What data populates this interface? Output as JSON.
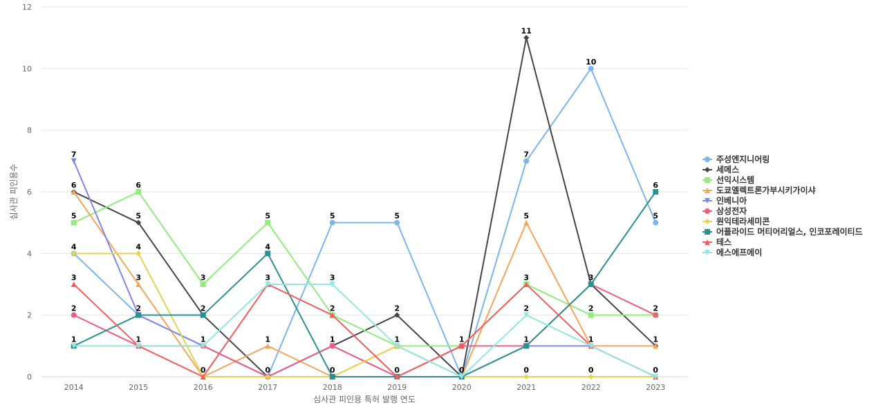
{
  "chart_data": {
    "type": "line",
    "title": "",
    "xlabel": "심사관 피인용 특허 발행 연도",
    "ylabel": "심사관 피인용수",
    "ylim": [
      0,
      12
    ],
    "yticks": [
      0,
      2,
      4,
      6,
      8,
      10,
      12
    ],
    "grid": true,
    "legend_position": "right",
    "categories": [
      "2014",
      "2015",
      "2016",
      "2017",
      "2018",
      "2019",
      "2020",
      "2021",
      "2022",
      "2023"
    ],
    "series": [
      {
        "name": "주성엔지니어링",
        "color": "#7cb5ec",
        "marker": "circle",
        "values": [
          4,
          2,
          1,
          0,
          5,
          5,
          0,
          7,
          10,
          5
        ]
      },
      {
        "name": "세메스",
        "color": "#434348",
        "marker": "diamond",
        "values": [
          6,
          5,
          2,
          0,
          1,
          2,
          0,
          11,
          3,
          1
        ]
      },
      {
        "name": "선익시스템",
        "color": "#90ed7d",
        "marker": "square",
        "values": [
          5,
          6,
          3,
          5,
          2,
          1,
          1,
          3,
          2,
          2
        ]
      },
      {
        "name": "도쿄엘렉트론가부시키가이샤",
        "color": "#f7a35c",
        "marker": "triangle",
        "values": [
          6,
          3,
          0,
          1,
          0,
          1,
          0,
          5,
          1,
          1
        ]
      },
      {
        "name": "인베니아",
        "color": "#8085e9",
        "marker": "triangle-down",
        "values": [
          7,
          2,
          1,
          0,
          1,
          0,
          0,
          1,
          1,
          0
        ]
      },
      {
        "name": "삼성전자",
        "color": "#f15c80",
        "marker": "circle",
        "values": [
          2,
          1,
          1,
          0,
          1,
          0,
          1,
          1,
          3,
          2
        ]
      },
      {
        "name": "원익테라세미콘",
        "color": "#e4d354",
        "marker": "diamond",
        "values": [
          4,
          4,
          0,
          0,
          0,
          1,
          0,
          0,
          0,
          0
        ]
      },
      {
        "name": "어플라이드 머티어리얼스, 인코포레이티드",
        "color": "#2b908f",
        "marker": "square",
        "values": [
          1,
          2,
          2,
          4,
          0,
          0,
          0,
          1,
          3,
          6
        ]
      },
      {
        "name": "테스",
        "color": "#f45b5b",
        "marker": "triangle",
        "values": [
          3,
          1,
          0,
          3,
          2,
          0,
          1,
          3,
          1,
          0
        ]
      },
      {
        "name": "에스에프에이",
        "color": "#91e8e1",
        "marker": "triangle-down",
        "values": [
          1,
          1,
          1,
          3,
          3,
          1,
          0,
          2,
          1,
          0
        ]
      }
    ],
    "data_labels": [
      {
        "x": "2014",
        "value": 7
      },
      {
        "x": "2014",
        "value": 6
      },
      {
        "x": "2014",
        "value": 5
      },
      {
        "x": "2014",
        "value": 4
      },
      {
        "x": "2014",
        "value": 3
      },
      {
        "x": "2014",
        "value": 2
      },
      {
        "x": "2014",
        "value": 1
      },
      {
        "x": "2015",
        "value": 6
      },
      {
        "x": "2015",
        "value": 5
      },
      {
        "x": "2015",
        "value": 4
      },
      {
        "x": "2015",
        "value": 3
      },
      {
        "x": "2015",
        "value": 2
      },
      {
        "x": "2015",
        "value": 1
      },
      {
        "x": "2016",
        "value": 3
      },
      {
        "x": "2016",
        "value": 2
      },
      {
        "x": "2016",
        "value": 1
      },
      {
        "x": "2016",
        "value": 0
      },
      {
        "x": "2017",
        "value": 5
      },
      {
        "x": "2017",
        "value": 4
      },
      {
        "x": "2017",
        "value": 3
      },
      {
        "x": "2017",
        "value": 1
      },
      {
        "x": "2017",
        "value": 0
      },
      {
        "x": "2018",
        "value": 5
      },
      {
        "x": "2018",
        "value": 3
      },
      {
        "x": "2018",
        "value": 2
      },
      {
        "x": "2018",
        "value": 1
      },
      {
        "x": "2018",
        "value": 0
      },
      {
        "x": "2019",
        "value": 5
      },
      {
        "x": "2019",
        "value": 2
      },
      {
        "x": "2019",
        "value": 1
      },
      {
        "x": "2019",
        "value": 0
      },
      {
        "x": "2020",
        "value": 1
      },
      {
        "x": "2020",
        "value": 0
      },
      {
        "x": "2021",
        "value": 11
      },
      {
        "x": "2021",
        "value": 7
      },
      {
        "x": "2021",
        "value": 5
      },
      {
        "x": "2021",
        "value": 3
      },
      {
        "x": "2021",
        "value": 2
      },
      {
        "x": "2021",
        "value": 1
      },
      {
        "x": "2021",
        "value": 0
      },
      {
        "x": "2022",
        "value": 10
      },
      {
        "x": "2022",
        "value": 3
      },
      {
        "x": "2022",
        "value": 2
      },
      {
        "x": "2022",
        "value": 1
      },
      {
        "x": "2022",
        "value": 0
      },
      {
        "x": "2023",
        "value": 6
      },
      {
        "x": "2023",
        "value": 5
      },
      {
        "x": "2023",
        "value": 2
      },
      {
        "x": "2023",
        "value": 1
      },
      {
        "x": "2023",
        "value": 0
      }
    ]
  }
}
